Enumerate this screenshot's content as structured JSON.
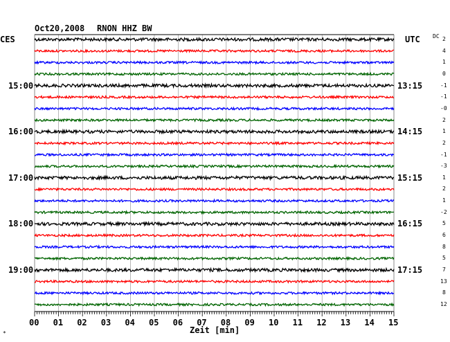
{
  "header": {
    "date": "Oct20,2008",
    "station": "RNON HHZ BW",
    "left_zone": "CES",
    "right_zone": "UTC",
    "dc_label": "DC"
  },
  "footer": {
    "xlabel": "Zeit [min]",
    "corner_mark": "*"
  },
  "colors": {
    "trace_cycle": [
      "#000000",
      "#ff0000",
      "#0000ff",
      "#006400"
    ],
    "grid": "#000000",
    "background": "#ffffff"
  },
  "chart_data": {
    "type": "line",
    "description_type": "helicorder",
    "x_range": [
      0,
      15
    ],
    "x_ticks": [
      "00",
      "01",
      "02",
      "03",
      "04",
      "05",
      "06",
      "07",
      "08",
      "09",
      "10",
      "11",
      "12",
      "13",
      "14",
      "15"
    ],
    "xlabel": "Zeit [min]",
    "grid": true,
    "trace_count": 24,
    "left_time_labels": [
      {
        "trace": 4,
        "label": "15:00"
      },
      {
        "trace": 8,
        "label": "16:00"
      },
      {
        "trace": 12,
        "label": "17:00"
      },
      {
        "trace": 16,
        "label": "18:00"
      },
      {
        "trace": 20,
        "label": "19:00"
      }
    ],
    "right_time_labels": [
      {
        "trace": 4,
        "label": "13:15"
      },
      {
        "trace": 8,
        "label": "14:15"
      },
      {
        "trace": 12,
        "label": "15:15"
      },
      {
        "trace": 16,
        "label": "16:15"
      },
      {
        "trace": 20,
        "label": "17:15"
      }
    ],
    "dc_offsets": [
      "2",
      "4",
      "1",
      "0",
      "-1",
      "-1",
      "-0",
      "2",
      "1",
      "2",
      "-1",
      "-3",
      "1",
      "2",
      "1",
      "-2",
      "5",
      "6",
      "8",
      "5",
      "7",
      "13",
      "8",
      "12"
    ]
  }
}
